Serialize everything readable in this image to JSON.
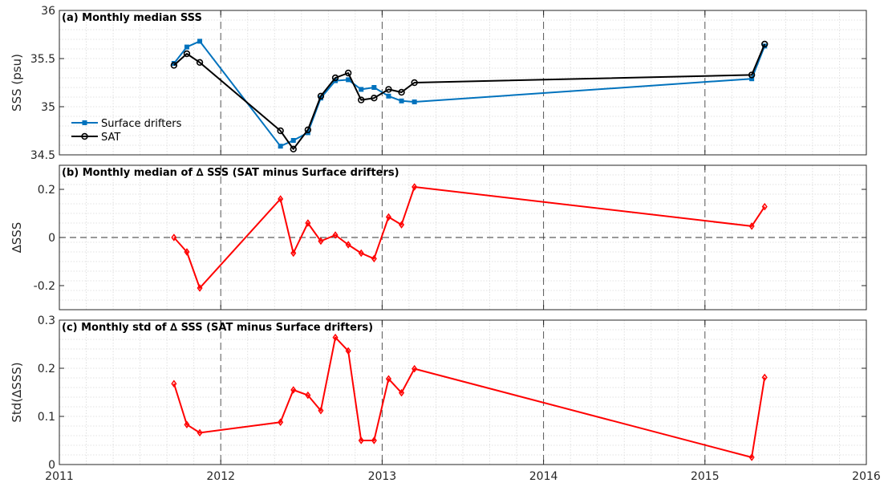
{
  "chart_data": [
    {
      "type": "line",
      "title": "(a) Monthly median SSS",
      "xlabel": "",
      "ylabel": "SSS (psu)",
      "xlim": [
        2011,
        2016
      ],
      "ylim": [
        34.5,
        36
      ],
      "xticks": [
        "2011",
        "2012",
        "2013",
        "2014",
        "2015",
        "2016"
      ],
      "yticks": [
        "34.5",
        "35",
        "35.5",
        "36"
      ],
      "grid": true,
      "legend_position": "left",
      "series": [
        {
          "name": "Surface drifters",
          "color": "#0072BD",
          "marker": "square",
          "x": [
            2011.71,
            2011.79,
            2011.87,
            2012.37,
            2012.45,
            2012.54,
            2012.62,
            2012.71,
            2012.79,
            2012.87,
            2012.95,
            2013.04,
            2013.12,
            2013.2,
            2015.29,
            2015.37
          ],
          "y": [
            35.45,
            35.62,
            35.68,
            34.59,
            34.65,
            34.73,
            35.09,
            35.27,
            35.28,
            35.18,
            35.2,
            35.11,
            35.06,
            35.05,
            35.29,
            35.63
          ]
        },
        {
          "name": "SAT",
          "color": "#000000",
          "marker": "circle",
          "x": [
            2011.71,
            2011.79,
            2011.87,
            2012.37,
            2012.45,
            2012.54,
            2012.62,
            2012.71,
            2012.79,
            2012.87,
            2012.95,
            2013.04,
            2013.12,
            2013.2,
            2015.29,
            2015.37
          ],
          "y": [
            35.43,
            35.55,
            35.46,
            34.75,
            34.56,
            34.76,
            35.11,
            35.3,
            35.35,
            35.07,
            35.09,
            35.18,
            35.15,
            35.25,
            35.33,
            35.65
          ]
        }
      ]
    },
    {
      "type": "line",
      "title": "(b) Monthly median of ∆ SSS (SAT minus Surface drifters)",
      "xlabel": "",
      "ylabel": "∆SSS",
      "xlim": [
        2011,
        2016
      ],
      "ylim": [
        -0.3,
        0.3
      ],
      "xticks": [
        "2011",
        "2012",
        "2013",
        "2014",
        "2015",
        "2016"
      ],
      "yticks": [
        "-0.2",
        "0",
        "0.2"
      ],
      "grid": true,
      "zero_line": true,
      "series": [
        {
          "color": "#FF0000",
          "marker": "diamond",
          "x": [
            2011.71,
            2011.79,
            2011.87,
            2012.37,
            2012.45,
            2012.54,
            2012.62,
            2012.71,
            2012.79,
            2012.87,
            2012.95,
            2013.04,
            2013.12,
            2013.2,
            2015.29,
            2015.37
          ],
          "y": [
            0.0,
            -0.06,
            -0.21,
            0.16,
            -0.065,
            0.06,
            -0.015,
            0.01,
            -0.03,
            -0.065,
            -0.088,
            0.085,
            0.053,
            0.21,
            0.047,
            0.128
          ]
        }
      ]
    },
    {
      "type": "line",
      "title": "(c) Monthly std of ∆ SSS (SAT minus Surface drifters)",
      "xlabel": "",
      "ylabel": "Std(∆SSS)",
      "xlim": [
        2011,
        2016
      ],
      "ylim": [
        0,
        0.3
      ],
      "xticks": [
        "2011",
        "2012",
        "2013",
        "2014",
        "2015",
        "2016"
      ],
      "yticks": [
        "0",
        "0.1",
        "0.2",
        "0.3"
      ],
      "grid": true,
      "series": [
        {
          "color": "#FF0000",
          "marker": "diamond",
          "x": [
            2011.71,
            2011.79,
            2011.87,
            2012.37,
            2012.45,
            2012.54,
            2012.62,
            2012.71,
            2012.79,
            2012.87,
            2012.95,
            2013.04,
            2013.12,
            2013.2,
            2015.29,
            2015.37
          ],
          "y": [
            0.168,
            0.083,
            0.066,
            0.088,
            0.155,
            0.144,
            0.112,
            0.264,
            0.236,
            0.05,
            0.05,
            0.178,
            0.149,
            0.199,
            0.015,
            0.181
          ]
        }
      ]
    }
  ]
}
